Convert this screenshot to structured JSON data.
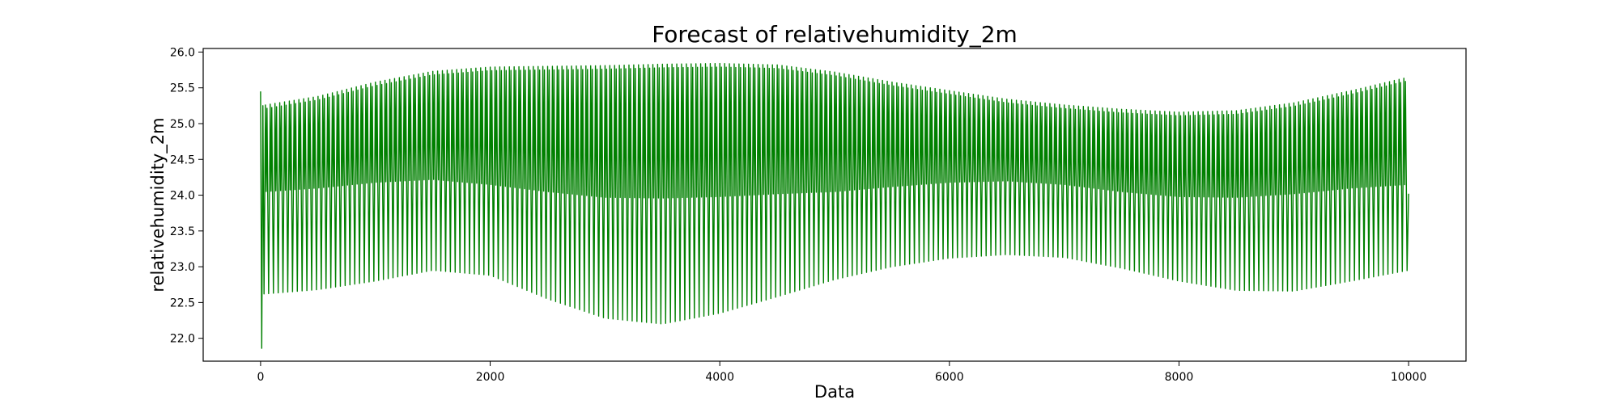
{
  "chart_data": {
    "type": "line",
    "title": "Forecast of relativehumidity_2m",
    "xlabel": "Data",
    "ylabel": "relativehumidity_2m",
    "xlim": [
      -500,
      10500
    ],
    "ylim": [
      21.68,
      26.05
    ],
    "xticks": [
      0,
      2000,
      4000,
      6000,
      8000,
      10000
    ],
    "yticks": [
      22.0,
      22.5,
      23.0,
      23.5,
      24.0,
      24.5,
      25.0,
      25.5,
      26.0
    ],
    "xtick_labels": [
      "0",
      "2000",
      "4000",
      "6000",
      "8000",
      "10000"
    ],
    "ytick_labels": [
      "22.0",
      "22.5",
      "23.0",
      "23.5",
      "24.0",
      "24.5",
      "25.0",
      "25.5",
      "26.0"
    ],
    "grid": false,
    "series": [
      {
        "color": "#008000",
        "num_points": 10000,
        "oscillation_cycles": 240,
        "start_values": [
          25.45,
          21.86,
          25.25,
          22.62
        ],
        "upper_envelope": [
          [
            40,
            25.26
          ],
          [
            500,
            25.38
          ],
          [
            1000,
            25.58
          ],
          [
            1500,
            25.73
          ],
          [
            2000,
            25.79
          ],
          [
            2500,
            25.8
          ],
          [
            3000,
            25.81
          ],
          [
            3500,
            25.83
          ],
          [
            4000,
            25.84
          ],
          [
            4500,
            25.82
          ],
          [
            5000,
            25.72
          ],
          [
            5500,
            25.58
          ],
          [
            6000,
            25.46
          ],
          [
            6500,
            25.34
          ],
          [
            7000,
            25.26
          ],
          [
            7500,
            25.2
          ],
          [
            8000,
            25.16
          ],
          [
            8500,
            25.18
          ],
          [
            9000,
            25.29
          ],
          [
            9500,
            25.46
          ],
          [
            10000,
            25.65
          ]
        ],
        "upper_inner_envelope": [
          [
            40,
            24.05
          ],
          [
            500,
            24.1
          ],
          [
            1000,
            24.18
          ],
          [
            1500,
            24.22
          ],
          [
            2000,
            24.15
          ],
          [
            2500,
            24.05
          ],
          [
            3000,
            23.97
          ],
          [
            3500,
            23.96
          ],
          [
            4000,
            23.98
          ],
          [
            4500,
            24.02
          ],
          [
            5000,
            24.05
          ],
          [
            5500,
            24.12
          ],
          [
            6000,
            24.18
          ],
          [
            6500,
            24.2
          ],
          [
            7000,
            24.15
          ],
          [
            7500,
            24.05
          ],
          [
            8000,
            23.98
          ],
          [
            8500,
            23.97
          ],
          [
            9000,
            24.02
          ],
          [
            9500,
            24.1
          ],
          [
            10000,
            24.15
          ]
        ],
        "lower_envelope": [
          [
            40,
            22.62
          ],
          [
            500,
            22.68
          ],
          [
            1000,
            22.8
          ],
          [
            1500,
            22.95
          ],
          [
            2000,
            22.88
          ],
          [
            2500,
            22.55
          ],
          [
            3000,
            22.28
          ],
          [
            3500,
            22.2
          ],
          [
            4000,
            22.35
          ],
          [
            4500,
            22.58
          ],
          [
            5000,
            22.82
          ],
          [
            5500,
            23.0
          ],
          [
            6000,
            23.12
          ],
          [
            6500,
            23.17
          ],
          [
            7000,
            23.13
          ],
          [
            7500,
            22.98
          ],
          [
            8000,
            22.8
          ],
          [
            8500,
            22.67
          ],
          [
            9000,
            22.66
          ],
          [
            9500,
            22.8
          ],
          [
            10000,
            22.95
          ]
        ],
        "end_value": 24.02
      }
    ]
  }
}
